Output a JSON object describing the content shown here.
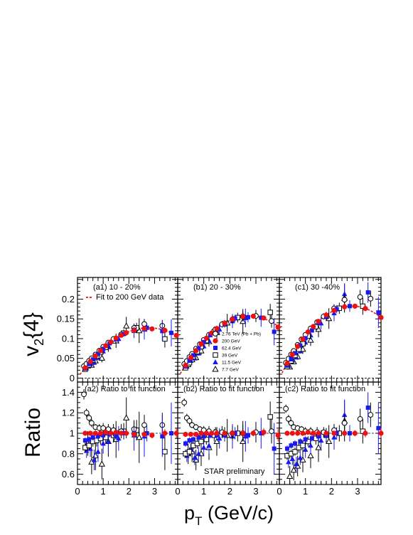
{
  "chart_data": {
    "type": "scatter",
    "x_title_main": "p",
    "x_title_sub": "T",
    "x_title_rest": " (GeV/c)",
    "y_top_main": "v",
    "y_top_sub": "2",
    "y_top_rest": "{4}",
    "y_bottom_title": "Ratio",
    "xlim": [
      0,
      3.9
    ],
    "ylim_top": [
      -0.01,
      0.255
    ],
    "ylim_bottom": [
      0.5,
      1.5
    ],
    "x_ticks": [
      "0",
      "1",
      "2",
      "3"
    ],
    "y_ticks_top": [
      "0",
      "0.05",
      "0.1",
      "0.15",
      "0.2"
    ],
    "y_ticks_bottom": [
      "0.6",
      "0.8",
      "1",
      "1.2",
      "1.4"
    ],
    "top_labels": [
      "(a1) 10 - 20%",
      "(b1) 20 - 30%",
      "(c1) 30 -40%"
    ],
    "bottom_labels": [
      "(a2) Ratio to fit function",
      "(b2) Ratio to fit function",
      "(c2) Ratio to fit function"
    ],
    "fit_legend": "Fit to 200 GeV data",
    "preliminary": "STAR preliminary",
    "legend": [
      "2.76 TeV (Pb + Pb)",
      "200 GeV",
      "62.4 GeV",
      "39 GeV",
      "11.5 GeV",
      "7.7 GeV"
    ],
    "series": [
      {
        "name": "2.76 TeV (Pb + Pb)",
        "marker": "open-circle",
        "color": "#000000"
      },
      {
        "name": "200 GeV",
        "marker": "filled-circle",
        "color": "#ee1111"
      },
      {
        "name": "62.4 GeV",
        "marker": "filled-square",
        "color": "#1a1aee"
      },
      {
        "name": "39 GeV",
        "marker": "open-square",
        "color": "#000000"
      },
      {
        "name": "11.5 GeV",
        "marker": "filled-triangle",
        "color": "#1a1aee"
      },
      {
        "name": "7.7 GeV",
        "marker": "open-triangle",
        "color": "#000000"
      }
    ],
    "fit_params": [
      {
        "a": 0.092,
        "b": -0.0166
      },
      {
        "a": 0.115,
        "b": -0.021
      },
      {
        "a": 0.131,
        "b": -0.0235
      }
    ],
    "panels": [
      {
        "ratio": {
          "2.76 TeV (Pb + Pb)": [
            [
              0.25,
              1.38,
              0.05
            ],
            [
              0.35,
              1.2,
              0.04
            ],
            [
              0.45,
              1.15,
              0.04
            ],
            [
              0.55,
              1.1,
              0.04
            ],
            [
              0.7,
              1.06,
              0.03
            ],
            [
              0.85,
              1.05,
              0.04
            ],
            [
              1.0,
              1.05,
              0.05
            ],
            [
              1.2,
              1.04,
              0.05
            ],
            [
              1.4,
              1.03,
              0.06
            ],
            [
              1.7,
              1.02,
              0.07
            ],
            [
              2.2,
              1.04,
              0.08
            ],
            [
              2.6,
              1.08,
              0.1
            ],
            [
              3.3,
              1.08,
              0.12
            ]
          ],
          "200 GeV": [
            [
              0.3,
              1.0,
              0.01
            ],
            [
              0.5,
              1.0,
              0.01
            ],
            [
              0.7,
              1.0,
              0.01
            ],
            [
              0.9,
              1.0,
              0.01
            ],
            [
              1.1,
              1.01,
              0.01
            ],
            [
              1.3,
              1.0,
              0.01
            ],
            [
              1.5,
              1.01,
              0.01
            ],
            [
              1.7,
              1.0,
              0.01
            ],
            [
              1.9,
              1.0,
              0.02
            ],
            [
              2.2,
              0.99,
              0.02
            ],
            [
              2.6,
              0.99,
              0.02
            ],
            [
              2.9,
              0.98,
              0.03
            ],
            [
              3.4,
              1.0,
              0.04
            ],
            [
              3.85,
              1.0,
              0.05
            ]
          ],
          "62.4 GeV": [
            [
              0.3,
              0.93,
              0.03
            ],
            [
              0.45,
              0.94,
              0.03
            ],
            [
              0.6,
              0.96,
              0.03
            ],
            [
              0.8,
              0.97,
              0.03
            ],
            [
              1.0,
              0.98,
              0.03
            ],
            [
              1.25,
              0.99,
              0.03
            ],
            [
              1.5,
              0.98,
              0.04
            ],
            [
              1.8,
              1.0,
              0.05
            ],
            [
              2.2,
              1.0,
              0.06
            ],
            [
              2.7,
              1.0,
              0.08
            ],
            [
              3.3,
              0.97,
              0.2
            ],
            [
              3.65,
              1.0,
              0.3
            ]
          ],
          "39 GeV": [
            [
              0.3,
              0.86,
              0.05
            ],
            [
              0.45,
              0.88,
              0.05
            ],
            [
              0.6,
              0.92,
              0.05
            ],
            [
              0.75,
              0.93,
              0.06
            ],
            [
              0.9,
              0.95,
              0.06
            ],
            [
              1.1,
              0.96,
              0.06
            ],
            [
              1.4,
              0.98,
              0.07
            ],
            [
              1.8,
              1.02,
              0.08
            ],
            [
              2.3,
              1.03,
              0.1
            ],
            [
              3.4,
              0.82,
              0.18
            ]
          ],
          "11.5 GeV": [
            [
              0.35,
              0.83,
              0.07
            ],
            [
              0.5,
              0.85,
              0.08
            ],
            [
              0.65,
              0.74,
              0.1
            ],
            [
              0.8,
              0.82,
              0.1
            ],
            [
              1.0,
              0.9,
              0.1
            ],
            [
              1.2,
              0.92,
              0.1
            ],
            [
              1.6,
              0.95,
              0.12
            ],
            [
              2.2,
              0.98,
              0.15
            ],
            [
              2.6,
              0.97,
              0.2
            ]
          ],
          "7.7 GeV": [
            [
              0.4,
              0.9,
              0.12
            ],
            [
              0.55,
              0.72,
              0.12
            ],
            [
              0.7,
              0.78,
              0.14
            ],
            [
              0.95,
              0.7,
              0.15
            ],
            [
              1.2,
              0.92,
              0.15
            ],
            [
              1.5,
              0.94,
              0.18
            ],
            [
              1.9,
              1.15,
              0.2
            ],
            [
              2.4,
              0.96,
              0.25
            ]
          ]
        }
      },
      {
        "ratio": {
          "2.76 TeV (Pb + Pb)": [
            [
              0.25,
              1.3,
              0.04
            ],
            [
              0.35,
              1.15,
              0.04
            ],
            [
              0.45,
              1.12,
              0.04
            ],
            [
              0.55,
              1.08,
              0.03
            ],
            [
              0.7,
              1.06,
              0.03
            ],
            [
              0.85,
              1.04,
              0.03
            ],
            [
              1.0,
              1.03,
              0.04
            ],
            [
              1.2,
              1.02,
              0.05
            ],
            [
              1.45,
              1.01,
              0.05
            ],
            [
              1.7,
              1.01,
              0.06
            ],
            [
              2.1,
              1.0,
              0.07
            ],
            [
              2.5,
              1.0,
              0.08
            ],
            [
              3.0,
              1.01,
              0.1
            ],
            [
              3.6,
              1.02,
              0.12
            ]
          ],
          "200 GeV": [
            [
              0.3,
              0.99,
              0.01
            ],
            [
              0.5,
              0.99,
              0.01
            ],
            [
              0.7,
              0.99,
              0.01
            ],
            [
              0.9,
              1.0,
              0.01
            ],
            [
              1.1,
              1.0,
              0.01
            ],
            [
              1.3,
              1.0,
              0.01
            ],
            [
              1.5,
              1.0,
              0.01
            ],
            [
              1.8,
              1.0,
              0.01
            ],
            [
              2.1,
              1.0,
              0.02
            ],
            [
              2.5,
              1.0,
              0.02
            ],
            [
              2.9,
              1.0,
              0.03
            ],
            [
              3.3,
              1.01,
              0.04
            ],
            [
              3.85,
              0.98,
              0.06
            ]
          ],
          "62.4 GeV": [
            [
              0.3,
              0.9,
              0.03
            ],
            [
              0.45,
              0.93,
              0.03
            ],
            [
              0.6,
              0.94,
              0.03
            ],
            [
              0.8,
              0.96,
              0.03
            ],
            [
              1.0,
              0.97,
              0.03
            ],
            [
              1.25,
              0.98,
              0.03
            ],
            [
              1.5,
              0.98,
              0.04
            ],
            [
              1.8,
              0.98,
              0.05
            ],
            [
              2.2,
              1.0,
              0.06
            ],
            [
              2.7,
              0.98,
              0.08
            ],
            [
              3.2,
              1.0,
              0.15
            ],
            [
              3.7,
              0.85,
              0.25
            ]
          ],
          "39 GeV": [
            [
              0.3,
              0.8,
              0.04
            ],
            [
              0.45,
              0.82,
              0.04
            ],
            [
              0.6,
              0.88,
              0.04
            ],
            [
              0.75,
              0.9,
              0.05
            ],
            [
              0.9,
              0.92,
              0.05
            ],
            [
              1.1,
              0.94,
              0.05
            ],
            [
              1.4,
              0.98,
              0.06
            ],
            [
              1.8,
              0.99,
              0.07
            ],
            [
              2.3,
              1.0,
              0.08
            ],
            [
              3.55,
              1.16,
              0.15
            ]
          ],
          "11.5 GeV": [
            [
              0.35,
              0.78,
              0.06
            ],
            [
              0.5,
              0.84,
              0.06
            ],
            [
              0.65,
              0.76,
              0.07
            ],
            [
              0.8,
              0.8,
              0.07
            ],
            [
              1.0,
              0.86,
              0.08
            ],
            [
              1.2,
              0.88,
              0.08
            ],
            [
              1.6,
              0.95,
              0.1
            ],
            [
              2.1,
              0.97,
              0.12
            ],
            [
              2.6,
              0.97,
              0.15
            ]
          ],
          "7.7 GeV": [
            [
              0.4,
              0.8,
              0.1
            ],
            [
              0.55,
              0.82,
              0.1
            ],
            [
              0.7,
              0.74,
              0.1
            ],
            [
              0.9,
              0.8,
              0.12
            ],
            [
              1.2,
              0.86,
              0.12
            ],
            [
              1.5,
              0.92,
              0.14
            ],
            [
              1.9,
              0.98,
              0.16
            ],
            [
              2.5,
              0.92,
              0.2
            ]
          ]
        }
      },
      {
        "ratio": {
          "2.76 TeV (Pb + Pb)": [
            [
              0.25,
              1.24,
              0.04
            ],
            [
              0.35,
              1.14,
              0.04
            ],
            [
              0.45,
              1.1,
              0.03
            ],
            [
              0.55,
              1.06,
              0.03
            ],
            [
              0.7,
              1.05,
              0.03
            ],
            [
              0.85,
              1.04,
              0.03
            ],
            [
              1.0,
              1.02,
              0.04
            ],
            [
              1.2,
              1.02,
              0.04
            ],
            [
              1.45,
              1.01,
              0.05
            ],
            [
              1.7,
              1.01,
              0.05
            ],
            [
              2.1,
              1.03,
              0.06
            ],
            [
              2.5,
              1.1,
              0.08
            ],
            [
              3.1,
              1.14,
              0.1
            ],
            [
              3.5,
              1.18,
              0.12
            ]
          ],
          "200 GeV": [
            [
              0.3,
              1.0,
              0.01
            ],
            [
              0.5,
              1.0,
              0.01
            ],
            [
              0.7,
              1.0,
              0.01
            ],
            [
              0.9,
              1.0,
              0.01
            ],
            [
              1.1,
              1.01,
              0.01
            ],
            [
              1.3,
              1.0,
              0.01
            ],
            [
              1.5,
              1.0,
              0.01
            ],
            [
              1.8,
              1.0,
              0.01
            ],
            [
              2.1,
              1.0,
              0.02
            ],
            [
              2.5,
              1.0,
              0.02
            ],
            [
              2.9,
              1.0,
              0.03
            ],
            [
              3.3,
              1.0,
              0.04
            ],
            [
              3.9,
              1.0,
              0.05
            ]
          ],
          "62.4 GeV": [
            [
              0.3,
              0.85,
              0.03
            ],
            [
              0.45,
              0.88,
              0.03
            ],
            [
              0.6,
              0.9,
              0.03
            ],
            [
              0.8,
              0.92,
              0.03
            ],
            [
              1.0,
              0.94,
              0.03
            ],
            [
              1.25,
              0.95,
              0.03
            ],
            [
              1.5,
              0.97,
              0.04
            ],
            [
              1.8,
              0.98,
              0.05
            ],
            [
              2.2,
              1.0,
              0.06
            ],
            [
              2.7,
              1.0,
              0.08
            ],
            [
              3.4,
              1.25,
              0.15
            ],
            [
              3.8,
              1.05,
              0.25
            ]
          ],
          "39 GeV": [
            [
              0.3,
              0.78,
              0.04
            ],
            [
              0.45,
              0.8,
              0.04
            ],
            [
              0.6,
              0.82,
              0.04
            ],
            [
              0.75,
              0.86,
              0.05
            ],
            [
              0.9,
              0.88,
              0.05
            ],
            [
              1.1,
              0.92,
              0.05
            ],
            [
              1.4,
              0.95,
              0.06
            ],
            [
              1.8,
              0.98,
              0.07
            ],
            [
              2.3,
              1.0,
              0.08
            ],
            [
              3.2,
              1.02,
              0.12
            ]
          ],
          "11.5 GeV": [
            [
              0.35,
              0.72,
              0.06
            ],
            [
              0.5,
              0.75,
              0.06
            ],
            [
              0.65,
              0.7,
              0.07
            ],
            [
              0.8,
              0.76,
              0.07
            ],
            [
              1.0,
              0.84,
              0.08
            ],
            [
              1.2,
              0.88,
              0.08
            ],
            [
              1.6,
              0.93,
              0.1
            ],
            [
              2.1,
              0.96,
              0.12
            ],
            [
              2.5,
              1.18,
              0.15
            ]
          ],
          "7.7 GeV": [
            [
              0.4,
              0.58,
              0.1
            ],
            [
              0.55,
              0.64,
              0.1
            ],
            [
              0.7,
              0.68,
              0.1
            ],
            [
              0.9,
              0.74,
              0.12
            ],
            [
              1.2,
              0.78,
              0.12
            ],
            [
              1.5,
              0.86,
              0.14
            ],
            [
              1.9,
              0.92,
              0.16
            ],
            [
              2.5,
              1.12,
              0.2
            ]
          ]
        }
      }
    ]
  }
}
